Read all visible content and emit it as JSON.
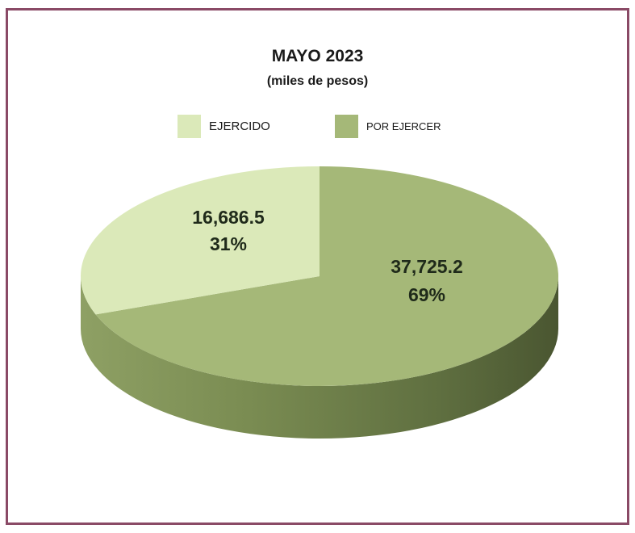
{
  "chart_data": {
    "type": "pie",
    "title": "MAYO 2023",
    "subtitle": "(miles de pesos)",
    "legend_position": "top",
    "slices": [
      {
        "label": "EJERCIDO",
        "value": 16686.5,
        "value_label": "16,686.5",
        "percent_label": "31%",
        "color": "#dbe9b9"
      },
      {
        "label": "POR EJERCER",
        "value": 37725.2,
        "value_label": "37,725.2",
        "percent_label": "69%",
        "color": "#a5b878"
      }
    ]
  },
  "colors": {
    "border": "#8a4a66",
    "side_dark": "#5c6b3e",
    "side_light": "#8ea064"
  }
}
